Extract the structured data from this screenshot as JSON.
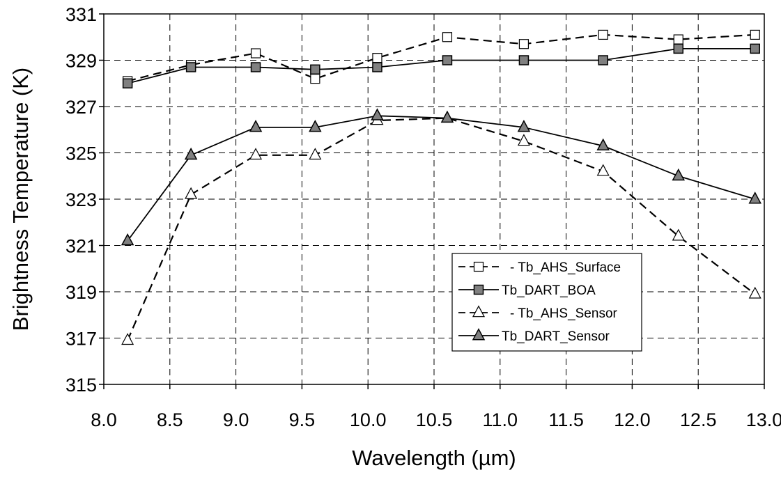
{
  "chart_data": {
    "type": "line",
    "xlabel": "Wavelength (µm)",
    "ylabel": "Brightness Temperature (K)",
    "xlim": [
      8.0,
      13.0
    ],
    "ylim": [
      315,
      331
    ],
    "x_ticks": [
      "8.0",
      "8.5",
      "9.0",
      "9.5",
      "10.0",
      "10.5",
      "11.0",
      "11.5",
      "12.0",
      "12.5",
      "13.0"
    ],
    "y_ticks": [
      "315",
      "317",
      "319",
      "321",
      "323",
      "325",
      "327",
      "329",
      "331"
    ],
    "grid": true,
    "legend_position": "lower-right",
    "series": [
      {
        "name": "Tb_AHS_Surface",
        "marker": "square-open",
        "line": "dashed",
        "x": [
          8.18,
          8.66,
          9.15,
          9.6,
          10.07,
          10.6,
          11.18,
          11.78,
          12.35,
          12.93
        ],
        "y": [
          328.1,
          328.8,
          329.3,
          328.2,
          329.1,
          330.0,
          329.7,
          330.1,
          329.9,
          330.1
        ]
      },
      {
        "name": "Tb_DART_BOA",
        "marker": "square-filled",
        "line": "solid",
        "x": [
          8.18,
          8.66,
          9.15,
          9.6,
          10.07,
          10.6,
          11.18,
          11.78,
          12.35,
          12.93
        ],
        "y": [
          328.0,
          328.7,
          328.7,
          328.6,
          328.7,
          329.0,
          329.0,
          329.0,
          329.5,
          329.5
        ]
      },
      {
        "name": "Tb_AHS_Sensor",
        "marker": "triangle-open",
        "line": "dashed",
        "x": [
          8.18,
          8.66,
          9.15,
          9.6,
          10.07,
          10.6,
          11.18,
          11.78,
          12.35,
          12.93
        ],
        "y": [
          316.9,
          323.2,
          324.9,
          324.9,
          326.4,
          326.5,
          325.5,
          324.2,
          321.4,
          318.9
        ]
      },
      {
        "name": "Tb_DART_Sensor",
        "marker": "triangle-filled",
        "line": "solid",
        "x": [
          8.18,
          8.66,
          9.15,
          9.6,
          10.07,
          10.6,
          11.18,
          11.78,
          12.35,
          12.93
        ],
        "y": [
          321.2,
          324.9,
          326.1,
          326.1,
          326.6,
          326.5,
          326.1,
          325.3,
          324.0,
          323.0
        ]
      }
    ],
    "colors": {
      "filled_marker": "#808080",
      "open_marker": "#ffffff",
      "line": "#000000",
      "grid": "#000000"
    }
  }
}
